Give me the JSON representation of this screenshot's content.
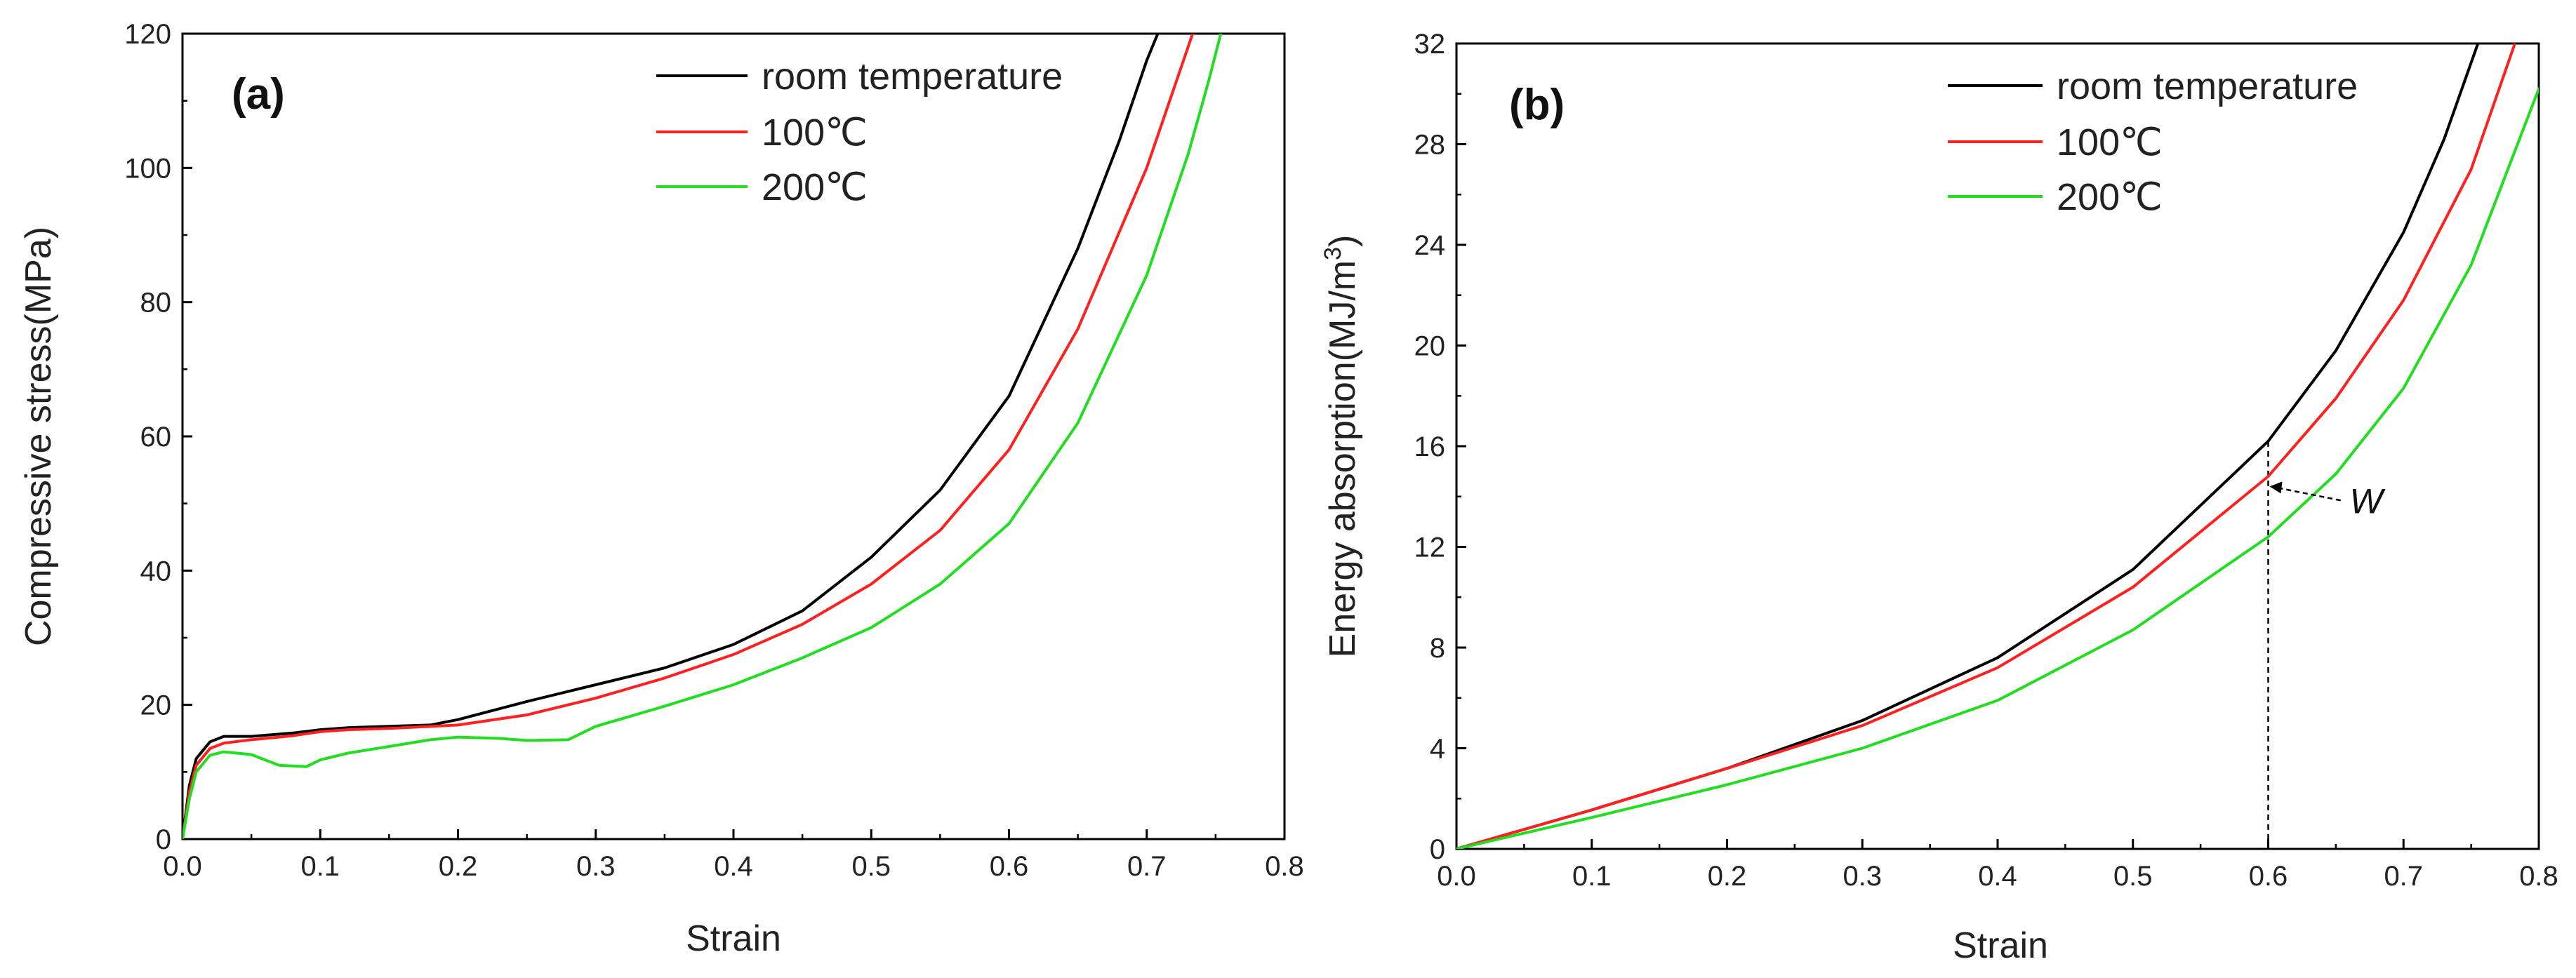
{
  "chart_data": [
    {
      "type": "line",
      "panel_label": "(a)",
      "title": "",
      "xlabel": "Strain",
      "ylabel": "Compressive stress(MPa)",
      "xlim": [
        0.0,
        0.8
      ],
      "ylim": [
        0,
        120
      ],
      "xticks": [
        "0.0",
        "0.1",
        "0.2",
        "0.3",
        "0.4",
        "0.5",
        "0.6",
        "0.7",
        "0.8"
      ],
      "yticks": [
        "0",
        "20",
        "40",
        "60",
        "80",
        "100",
        "120"
      ],
      "legend_position": "top-right",
      "series": [
        {
          "name": "room temperature",
          "color": "#000000",
          "x": [
            0.0,
            0.005,
            0.01,
            0.02,
            0.03,
            0.05,
            0.08,
            0.1,
            0.12,
            0.15,
            0.18,
            0.2,
            0.25,
            0.3,
            0.35,
            0.4,
            0.45,
            0.5,
            0.55,
            0.6,
            0.65,
            0.68,
            0.7,
            0.71
          ],
          "y": [
            0,
            8,
            12,
            14.5,
            15.3,
            15.3,
            15.8,
            16.3,
            16.6,
            16.8,
            17,
            17.8,
            20.5,
            23,
            25.5,
            29,
            34,
            42,
            52,
            66,
            88,
            104,
            116,
            121
          ]
        },
        {
          "name": "100℃",
          "color": "#ff2020",
          "x": [
            0.0,
            0.005,
            0.01,
            0.02,
            0.03,
            0.05,
            0.08,
            0.1,
            0.12,
            0.15,
            0.2,
            0.25,
            0.3,
            0.35,
            0.4,
            0.45,
            0.5,
            0.55,
            0.6,
            0.65,
            0.7,
            0.72,
            0.735
          ],
          "y": [
            0,
            7,
            11,
            13.5,
            14.3,
            14.8,
            15.4,
            16,
            16.3,
            16.5,
            17,
            18.5,
            21,
            24,
            27.5,
            32,
            38,
            46,
            58,
            76,
            100,
            112,
            121
          ]
        },
        {
          "name": "200℃",
          "color": "#22dd22",
          "x": [
            0.0,
            0.005,
            0.01,
            0.02,
            0.03,
            0.05,
            0.07,
            0.09,
            0.1,
            0.12,
            0.15,
            0.18,
            0.2,
            0.23,
            0.25,
            0.28,
            0.3,
            0.35,
            0.4,
            0.45,
            0.5,
            0.55,
            0.6,
            0.65,
            0.7,
            0.73,
            0.745,
            0.755
          ],
          "y": [
            0,
            6,
            10,
            12.5,
            13,
            12.6,
            11,
            10.8,
            11.8,
            12.8,
            13.8,
            14.8,
            15.2,
            15,
            14.7,
            14.8,
            16.8,
            19.8,
            23,
            27,
            31.5,
            38,
            47,
            62,
            84,
            102,
            113,
            121
          ]
        }
      ]
    },
    {
      "type": "line",
      "panel_label": "(b)",
      "title": "",
      "xlabel": "Strain",
      "ylabel_prefix": "Energy absorption(MJ/m",
      "ylabel_superscript": "3",
      "ylabel_suffix": ")",
      "xlim": [
        0.0,
        0.8
      ],
      "ylim": [
        0,
        32
      ],
      "xticks": [
        "0.0",
        "0.1",
        "0.2",
        "0.3",
        "0.4",
        "0.5",
        "0.6",
        "0.7",
        "0.8"
      ],
      "yticks": [
        "0",
        "4",
        "8",
        "12",
        "16",
        "20",
        "24",
        "28",
        "32"
      ],
      "legend_position": "top-right",
      "annotation": {
        "text": "W",
        "at_x": 0.6,
        "at_y": 14.4
      },
      "reference_line_x": 0.6,
      "series": [
        {
          "name": "room temperature",
          "color": "#000000",
          "x": [
            0.0,
            0.1,
            0.2,
            0.3,
            0.4,
            0.5,
            0.6,
            0.65,
            0.7,
            0.73,
            0.757
          ],
          "y": [
            0,
            1.55,
            3.2,
            5.1,
            7.6,
            11.1,
            16.2,
            19.8,
            24.5,
            28.2,
            32.3
          ]
        },
        {
          "name": "100℃",
          "color": "#ff2020",
          "x": [
            0.0,
            0.1,
            0.2,
            0.3,
            0.4,
            0.5,
            0.6,
            0.65,
            0.7,
            0.75,
            0.783
          ],
          "y": [
            0,
            1.55,
            3.2,
            4.9,
            7.2,
            10.4,
            14.8,
            17.9,
            21.8,
            27.0,
            32.1
          ]
        },
        {
          "name": "200℃",
          "color": "#22dd22",
          "x": [
            0.0,
            0.1,
            0.2,
            0.3,
            0.4,
            0.5,
            0.6,
            0.65,
            0.7,
            0.75,
            0.8
          ],
          "y": [
            0,
            1.25,
            2.55,
            4.0,
            5.9,
            8.7,
            12.4,
            14.9,
            18.3,
            23.2,
            30.2
          ]
        }
      ]
    }
  ]
}
